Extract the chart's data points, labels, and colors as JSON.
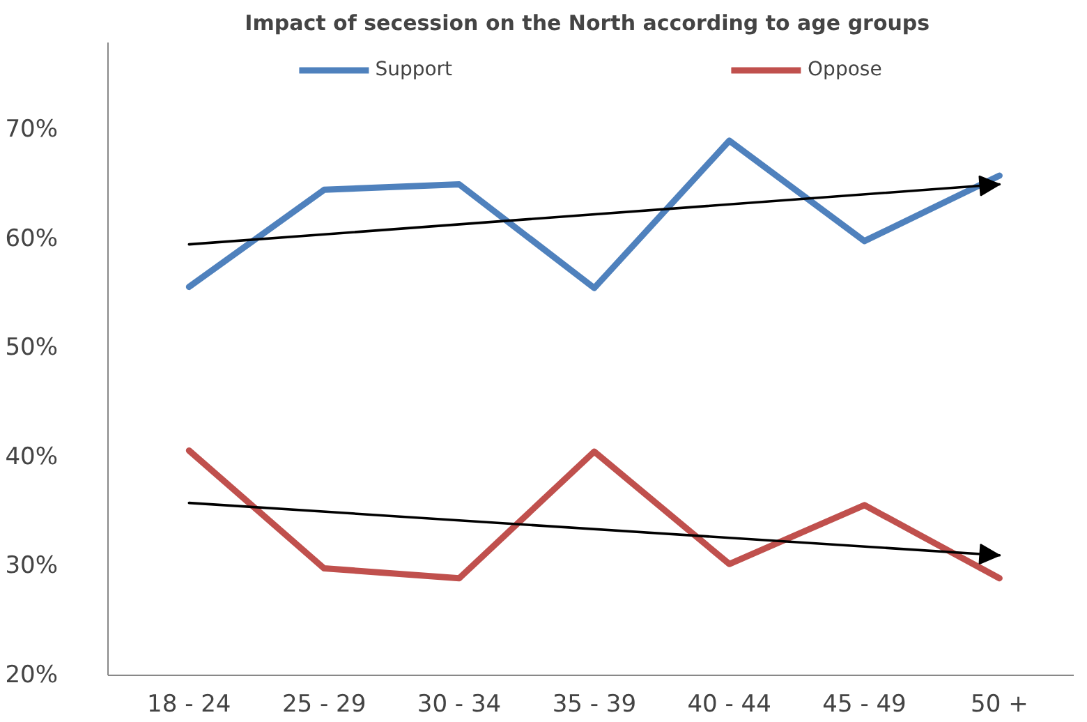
{
  "chart_data": {
    "type": "line",
    "title": "Impact of  secession on the North according to age groups",
    "categories": [
      "18 - 24",
      "25 - 29",
      "30 - 34",
      "35 - 39",
      "40 - 44",
      "45 - 49",
      "50 +"
    ],
    "series": [
      {
        "name": "Support",
        "color": "#4f81bd",
        "values": [
          55.6,
          64.5,
          65,
          55.5,
          69,
          59.8,
          65.8
        ]
      },
      {
        "name": "Oppose",
        "color": "#c0504d",
        "values": [
          40.6,
          29.8,
          28.9,
          40.5,
          30.2,
          35.6,
          28.9
        ]
      },
      {
        "type": "line",
        "color": "#000000",
        "x": [
          "18 - 24",
          "50 +"
        ],
        "values": [
          59.5,
          65
        ]
      },
      {
        "type": "line",
        "color": "#000000",
        "x": [
          "18 - 24",
          "50 +"
        ],
        "values": [
          35.8,
          31
        ]
      }
    ],
    "ylim": [
      20,
      78
    ],
    "yticks": [
      {
        "value": 20,
        "label": "20%"
      },
      {
        "value": 30,
        "label": "30%"
      },
      {
        "value": 40,
        "label": "40%"
      },
      {
        "value": 50,
        "label": "50%"
      },
      {
        "value": 60,
        "label": "60%"
      },
      {
        "value": 70,
        "label": "70%"
      }
    ],
    "grid": false,
    "legend": "top",
    "line_style": "solid"
  }
}
